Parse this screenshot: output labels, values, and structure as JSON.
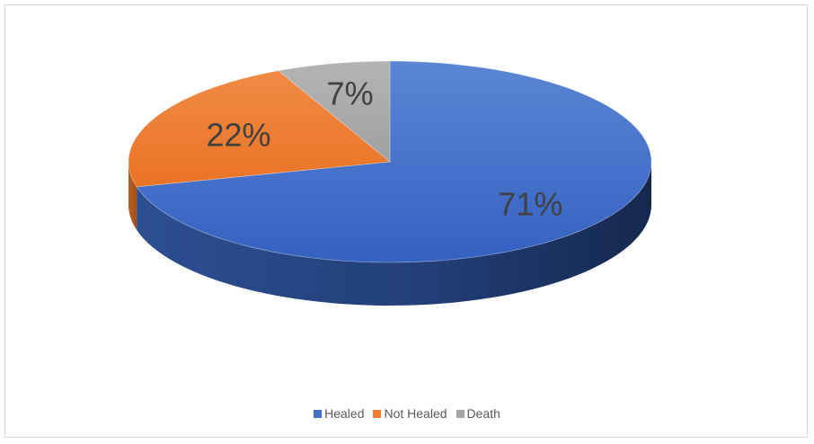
{
  "chart_data": {
    "type": "pie",
    "title": "",
    "categories": [
      "Healed",
      "Not Healed",
      "Death"
    ],
    "values": [
      71,
      22,
      7
    ],
    "labels": [
      "71%",
      "22%",
      "7%"
    ],
    "colors": [
      "#4472C4",
      "#ED7D31",
      "#A5A5A5"
    ],
    "three_d": true,
    "legend_position": "bottom"
  },
  "legend": {
    "items": [
      {
        "label": "Healed",
        "color": "#4472C4"
      },
      {
        "label": "Not Healed",
        "color": "#ED7D31"
      },
      {
        "label": "Death",
        "color": "#A5A5A5"
      }
    ]
  }
}
